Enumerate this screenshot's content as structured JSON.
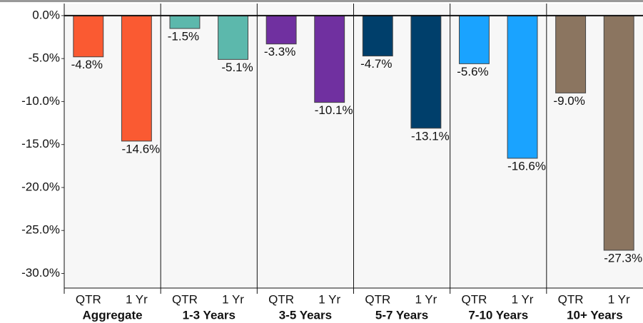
{
  "chart_data": {
    "type": "bar",
    "ylim": [
      -31.7,
      1.4
    ],
    "yticks": [
      {
        "value": 0,
        "label": "0.0%"
      },
      {
        "value": -5,
        "label": "-5.0%"
      },
      {
        "value": -10,
        "label": "-10.0%"
      },
      {
        "value": -15,
        "label": "-15.0%"
      },
      {
        "value": -20,
        "label": "-20.0%"
      },
      {
        "value": -25,
        "label": "-25.0%"
      },
      {
        "value": -30,
        "label": "-30.0%"
      }
    ],
    "groups": [
      {
        "name": "Aggregate",
        "color": "#fa5a32",
        "categories": [
          "QTR",
          "1 Yr"
        ],
        "values": [
          -4.8,
          -14.6
        ],
        "value_labels": [
          "-4.8%",
          "-14.6%"
        ]
      },
      {
        "name": "1-3 Years",
        "color": "#5cb8ac",
        "categories": [
          "QTR",
          "1 Yr"
        ],
        "values": [
          -1.5,
          -5.1
        ],
        "value_labels": [
          "-1.5%",
          "-5.1%"
        ]
      },
      {
        "name": "3-5 Years",
        "color": "#7030a0",
        "categories": [
          "QTR",
          "1 Yr"
        ],
        "values": [
          -3.3,
          -10.1
        ],
        "value_labels": [
          "-3.3%",
          "-10.1%"
        ]
      },
      {
        "name": "5-7 Years",
        "color": "#003f6b",
        "categories": [
          "QTR",
          "1 Yr"
        ],
        "values": [
          -4.7,
          -13.1
        ],
        "value_labels": [
          "-4.7%",
          "-13.1%"
        ]
      },
      {
        "name": "7-10 Years",
        "color": "#1aa3ff",
        "categories": [
          "QTR",
          "1 Yr"
        ],
        "values": [
          -5.6,
          -16.6
        ],
        "value_labels": [
          "-5.6%",
          "-16.6%"
        ]
      },
      {
        "name": "10+ Years",
        "color": "#8b7560",
        "categories": [
          "QTR",
          "1 Yr"
        ],
        "values": [
          -9.0,
          -27.3
        ],
        "value_labels": [
          "-9.0%",
          "-27.3%"
        ]
      }
    ]
  }
}
